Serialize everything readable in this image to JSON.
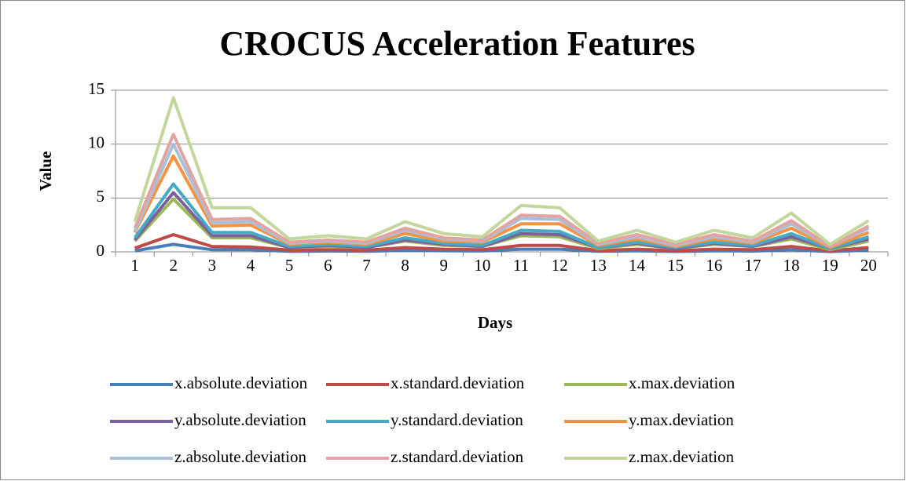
{
  "chart_data": {
    "type": "line",
    "title": "CROCUS Acceleration Features",
    "x_label": "Days",
    "y_label": "Value",
    "categories": [
      "1",
      "2",
      "3",
      "4",
      "5",
      "6",
      "7",
      "8",
      "9",
      "10",
      "11",
      "12",
      "13",
      "14",
      "15",
      "16",
      "17",
      "18",
      "19",
      "20"
    ],
    "ylim": [
      0,
      15
    ],
    "yticks": [
      0,
      5,
      10,
      15
    ],
    "grid": true,
    "legend": "bottom",
    "series": [
      {
        "name": "x.absolute.deviation",
        "color": "#4a7ebb",
        "values": [
          0.1,
          0.7,
          0.2,
          0.2,
          0.05,
          0.08,
          0.05,
          0.15,
          0.1,
          0.08,
          0.25,
          0.25,
          0.05,
          0.1,
          0.04,
          0.1,
          0.07,
          0.2,
          0.03,
          0.15
        ]
      },
      {
        "name": "x.standard.deviation",
        "color": "#be4b48",
        "values": [
          0.35,
          1.6,
          0.5,
          0.45,
          0.15,
          0.2,
          0.15,
          0.4,
          0.25,
          0.2,
          0.6,
          0.6,
          0.12,
          0.25,
          0.1,
          0.25,
          0.2,
          0.5,
          0.08,
          0.4
        ]
      },
      {
        "name": "x.max.deviation",
        "color": "#98b954",
        "values": [
          1.0,
          4.9,
          1.3,
          1.3,
          0.4,
          0.5,
          0.4,
          1.0,
          0.6,
          0.5,
          1.5,
          1.4,
          0.3,
          0.7,
          0.3,
          0.7,
          0.5,
          1.2,
          0.2,
          1.0
        ]
      },
      {
        "name": "y.absolute.deviation",
        "color": "#7d60a0",
        "values": [
          1.1,
          5.5,
          1.5,
          1.5,
          0.4,
          0.6,
          0.4,
          1.1,
          0.7,
          0.5,
          1.7,
          1.6,
          0.4,
          0.8,
          0.3,
          0.8,
          0.5,
          1.4,
          0.3,
          1.2
        ]
      },
      {
        "name": "y.standard.deviation",
        "color": "#46aac5",
        "values": [
          1.3,
          6.3,
          1.8,
          1.8,
          0.5,
          0.7,
          0.5,
          1.3,
          0.8,
          0.6,
          2.0,
          1.9,
          0.4,
          0.9,
          0.4,
          0.9,
          0.6,
          1.7,
          0.3,
          1.4
        ]
      },
      {
        "name": "y.max.deviation",
        "color": "#f69240",
        "values": [
          1.8,
          8.9,
          2.4,
          2.5,
          0.7,
          0.9,
          0.7,
          1.7,
          1.0,
          0.9,
          2.6,
          2.6,
          0.6,
          1.2,
          0.5,
          1.2,
          0.8,
          2.2,
          0.4,
          1.8
        ]
      },
      {
        "name": "z.absolute.deviation",
        "color": "#a7c0de",
        "values": [
          1.9,
          10.0,
          2.7,
          2.8,
          0.8,
          1.0,
          0.8,
          2.0,
          1.2,
          1.0,
          3.1,
          3.0,
          0.7,
          1.4,
          0.6,
          1.4,
          0.9,
          2.6,
          0.5,
          2.2
        ]
      },
      {
        "name": "z.standard.deviation",
        "color": "#e3a4a1",
        "values": [
          2.2,
          10.9,
          3.0,
          3.1,
          0.9,
          1.1,
          0.9,
          2.2,
          1.3,
          1.1,
          3.4,
          3.3,
          0.8,
          1.6,
          0.7,
          1.6,
          1.0,
          2.9,
          0.5,
          2.4
        ]
      },
      {
        "name": "z.max.deviation",
        "color": "#c3d69b",
        "values": [
          2.8,
          14.3,
          4.1,
          4.1,
          1.2,
          1.5,
          1.2,
          2.8,
          1.7,
          1.4,
          4.3,
          4.1,
          1.0,
          2.0,
          0.9,
          2.0,
          1.3,
          3.6,
          0.7,
          2.9
        ]
      }
    ]
  }
}
